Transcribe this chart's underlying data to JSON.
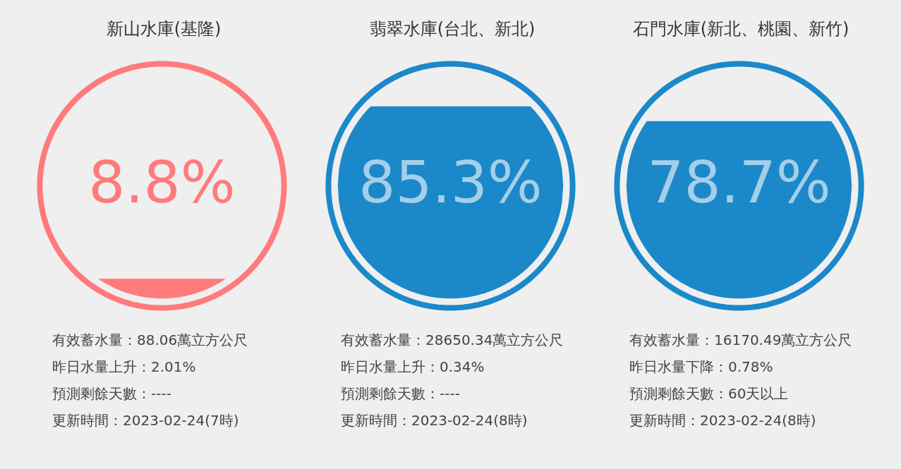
{
  "chart_data": [
    {
      "type": "other",
      "title": "新山水庫(基隆)",
      "values": [
        8.8
      ],
      "value_labels": [
        "8.8%"
      ],
      "colors": [
        "#ff7b7b"
      ],
      "annotations": [
        "有效蓄水量：88.06萬立方公尺",
        "昨日水量上升：2.01%",
        "預測剩餘天數：----",
        "更新時間：2023-02-24(7時)"
      ]
    },
    {
      "type": "other",
      "title": "翡翠水庫(台北、新北)",
      "values": [
        85.3
      ],
      "value_labels": [
        "85.3%"
      ],
      "colors": [
        "#1b88c9"
      ],
      "annotations": [
        "有效蓄水量：28650.34萬立方公尺",
        "昨日水量上升：0.34%",
        "預測剩餘天數：----",
        "更新時間：2023-02-24(8時)"
      ]
    },
    {
      "type": "other",
      "title": "石門水庫(新北、桃園、新竹)",
      "values": [
        78.7
      ],
      "value_labels": [
        "78.7%"
      ],
      "colors": [
        "#1b88c9"
      ],
      "annotations": [
        "有效蓄水量：16170.49萬立方公尺",
        "昨日水量下降：0.78%",
        "預測剩餘天數：60天以上",
        "更新時間：2023-02-24(8時)"
      ]
    }
  ]
}
